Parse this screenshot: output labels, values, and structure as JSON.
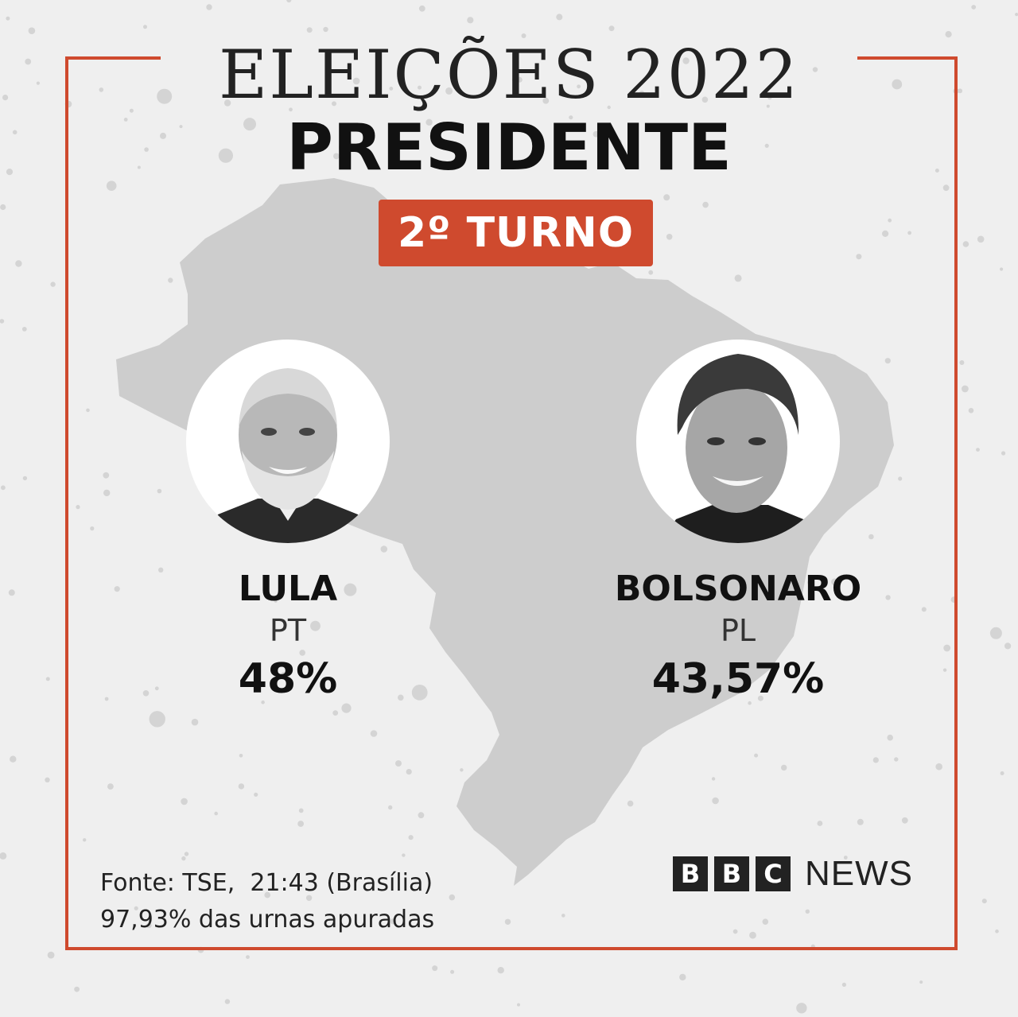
{
  "header": {
    "title": "ELEIÇÕES 2022",
    "subtitle": "PRESIDENTE",
    "round_badge": "2º TURNO"
  },
  "candidates": [
    {
      "name": "LULA",
      "party": "PT",
      "percent": "48%"
    },
    {
      "name": "BOLSONARO",
      "party": "PL",
      "percent": "43,57%"
    }
  ],
  "footer": {
    "source_line": "Fonte: TSE,  21:43 (Brasília)",
    "count_line": "97,93% das urnas apuradas"
  },
  "logo": {
    "letters": [
      "B",
      "B",
      "C"
    ],
    "word": "NEWS"
  },
  "colors": {
    "accent": "#cf4a2e",
    "background": "#efefef",
    "map": "#cdcdcd",
    "text": "#111111"
  }
}
